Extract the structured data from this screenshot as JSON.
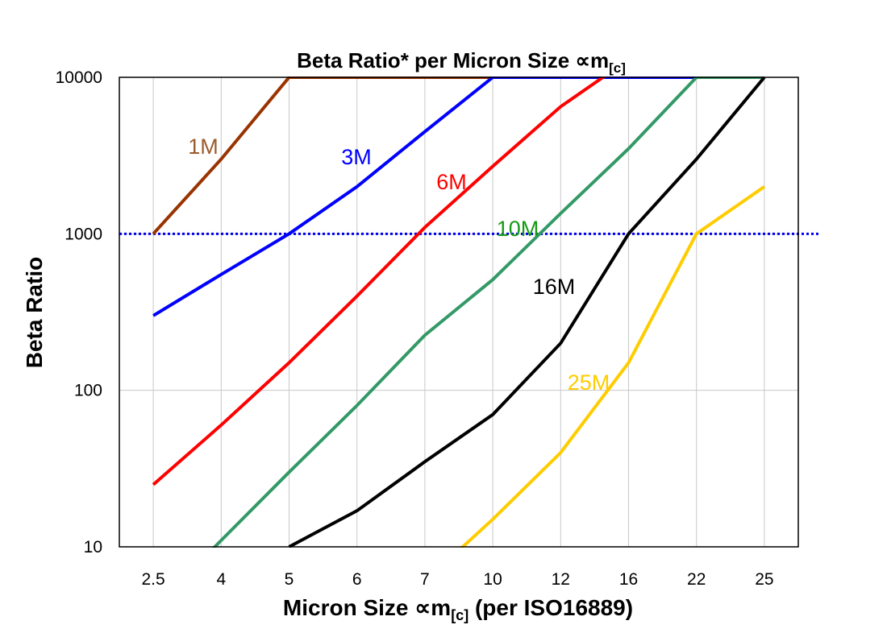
{
  "chart_data": {
    "type": "line",
    "title": "Beta Ratio* per Micron Size ∝m",
    "title_sub": "[c]",
    "xlabel": "Micron Size ∝m",
    "xlabel_sub": "[c]",
    "xlabel_suffix": " (per ISO16889)",
    "ylabel": "Beta Ratio",
    "y_scale": "log",
    "ylim": [
      10,
      10000
    ],
    "grid": true,
    "categories": [
      "2.5",
      "4",
      "5",
      "6",
      "7",
      "10",
      "12",
      "16",
      "22",
      "25"
    ],
    "y_ticks": [
      "10",
      "100",
      "1000",
      "10000"
    ],
    "reference_line": {
      "value": 1000,
      "style": "dotted",
      "color": "#0000EE"
    },
    "series": [
      {
        "name": "1M",
        "color": "#993300",
        "label_color": "#9C5B2C",
        "values": [
          1000,
          3000,
          10000,
          10000,
          10000,
          10000,
          10000,
          10000,
          10000,
          10000
        ]
      },
      {
        "name": "3M",
        "color": "#0000FF",
        "label_color": "#0000FF",
        "values": [
          300,
          550,
          1000,
          2000,
          4500,
          10000,
          10000,
          10000,
          10000,
          10000
        ]
      },
      {
        "name": "6M",
        "color": "#FF0000",
        "label_color": "#FF0000",
        "values": [
          25,
          60,
          150,
          400,
          1100,
          2700,
          6500,
          13000,
          null,
          null
        ]
      },
      {
        "name": "10M",
        "color": "#339966",
        "label_color": "#169A16",
        "values": [
          4,
          11,
          30,
          80,
          225,
          510,
          1350,
          3500,
          10000,
          10000
        ]
      },
      {
        "name": "16M",
        "color": "#000000",
        "label_color": "#000000",
        "values": [
          null,
          null,
          10,
          17,
          35,
          70,
          200,
          1000,
          3000,
          10000
        ]
      },
      {
        "name": "25M",
        "color": "#FFCC00",
        "label_color": "#FFCC00",
        "values": [
          null,
          null,
          null,
          null,
          6,
          15,
          40,
          150,
          1000,
          2000
        ]
      }
    ]
  }
}
